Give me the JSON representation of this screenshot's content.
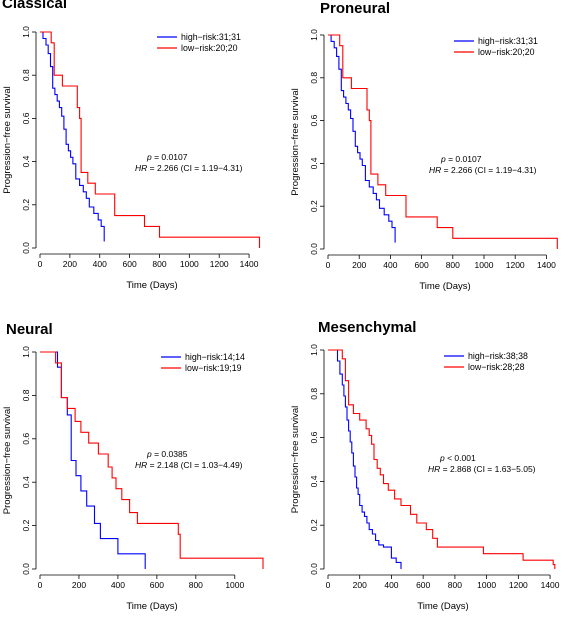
{
  "chart_data": [
    {
      "type": "line",
      "title": "Classical",
      "xlabel": "Time (Days)",
      "ylabel": "Progression−free survival",
      "xlim": [
        0,
        1500
      ],
      "ylim": [
        0,
        1
      ],
      "xticks": [
        0,
        200,
        400,
        600,
        800,
        1000,
        1200,
        1400
      ],
      "yticks": [
        0.0,
        0.2,
        0.4,
        0.6,
        0.8,
        1.0
      ],
      "grid": false,
      "legend_position": "top-right",
      "series": [
        {
          "name": "high−risk:31;31",
          "color": "#0000ff",
          "x": [
            0,
            20,
            40,
            55,
            70,
            85,
            100,
            115,
            130,
            145,
            160,
            175,
            190,
            205,
            220,
            240,
            265,
            290,
            310,
            330,
            360,
            390,
            410,
            430
          ],
          "y": [
            1.0,
            0.97,
            0.94,
            0.9,
            0.84,
            0.74,
            0.71,
            0.68,
            0.65,
            0.61,
            0.55,
            0.48,
            0.45,
            0.42,
            0.39,
            0.32,
            0.29,
            0.26,
            0.23,
            0.19,
            0.16,
            0.13,
            0.1,
            0.03
          ]
        },
        {
          "name": "low−risk:20;20",
          "color": "#ff0000",
          "x": [
            0,
            75,
            95,
            150,
            250,
            265,
            275,
            320,
            370,
            500,
            700,
            800,
            1460,
            1470
          ],
          "y": [
            1.0,
            0.95,
            0.8,
            0.75,
            0.65,
            0.6,
            0.35,
            0.3,
            0.25,
            0.15,
            0.1,
            0.05,
            0.05,
            0.0
          ]
        }
      ],
      "annotations": {
        "p_label": "p",
        "p_value": "= 0.0107",
        "hr_label": "HR",
        "hr_value": "= 2.266  (CI = 1.19−4.31)"
      }
    },
    {
      "type": "line",
      "title": "Proneural",
      "xlabel": "Time (Days)",
      "ylabel": "Progression−free survival",
      "xlim": [
        0,
        1500
      ],
      "ylim": [
        0,
        1
      ],
      "xticks": [
        0,
        200,
        400,
        600,
        800,
        1000,
        1200,
        1400
      ],
      "yticks": [
        0.0,
        0.2,
        0.4,
        0.6,
        0.8,
        1.0
      ],
      "grid": false,
      "legend_position": "top-right",
      "series": [
        {
          "name": "high−risk:31;31",
          "color": "#0000ff",
          "x": [
            0,
            20,
            40,
            55,
            70,
            85,
            100,
            115,
            130,
            145,
            160,
            175,
            190,
            205,
            220,
            240,
            265,
            290,
            310,
            330,
            360,
            390,
            410,
            430
          ],
          "y": [
            1.0,
            0.97,
            0.94,
            0.9,
            0.84,
            0.74,
            0.71,
            0.68,
            0.65,
            0.61,
            0.55,
            0.48,
            0.45,
            0.42,
            0.39,
            0.32,
            0.29,
            0.26,
            0.23,
            0.19,
            0.16,
            0.13,
            0.1,
            0.03
          ]
        },
        {
          "name": "low−risk:20;20",
          "color": "#ff0000",
          "x": [
            0,
            75,
            95,
            150,
            250,
            265,
            275,
            320,
            370,
            500,
            700,
            800,
            1460,
            1470
          ],
          "y": [
            1.0,
            0.95,
            0.8,
            0.75,
            0.65,
            0.6,
            0.35,
            0.3,
            0.25,
            0.15,
            0.1,
            0.05,
            0.05,
            0.0
          ]
        }
      ],
      "annotations": {
        "p_label": "p",
        "p_value": "= 0.0107",
        "hr_label": "HR",
        "hr_value": "= 2.266  (CI = 1.19−4.31)"
      }
    },
    {
      "type": "line",
      "title": "Neural",
      "xlabel": "Time (Days)",
      "ylabel": "Progression−free survival",
      "xlim": [
        0,
        1150
      ],
      "ylim": [
        0,
        1
      ],
      "xticks": [
        0,
        200,
        400,
        600,
        800,
        1000
      ],
      "yticks": [
        0.0,
        0.2,
        0.4,
        0.6,
        0.8,
        1.0
      ],
      "grid": false,
      "legend_position": "top-right",
      "series": [
        {
          "name": "high−risk:14;14",
          "color": "#0000ff",
          "x": [
            0,
            90,
            110,
            140,
            160,
            185,
            210,
            240,
            280,
            310,
            400,
            540
          ],
          "y": [
            1.0,
            0.93,
            0.79,
            0.71,
            0.5,
            0.43,
            0.36,
            0.29,
            0.21,
            0.14,
            0.07,
            0.0
          ]
        },
        {
          "name": "low−risk:19;19",
          "color": "#ff0000",
          "x": [
            0,
            80,
            110,
            140,
            180,
            210,
            250,
            300,
            350,
            370,
            390,
            420,
            460,
            500,
            710,
            720,
            1140,
            1145
          ],
          "y": [
            1.0,
            0.95,
            0.79,
            0.74,
            0.68,
            0.63,
            0.58,
            0.53,
            0.47,
            0.42,
            0.37,
            0.32,
            0.26,
            0.21,
            0.16,
            0.05,
            0.05,
            0.0
          ]
        }
      ],
      "annotations": {
        "p_label": "p",
        "p_value": "= 0.0385",
        "hr_label": "HR",
        "hr_value": "= 2.148  (CI = 1.03−4.49)"
      }
    },
    {
      "type": "line",
      "title": "Mesenchymal",
      "xlabel": "Time (Days)",
      "ylabel": "Progression−free survival",
      "xlim": [
        0,
        1450
      ],
      "ylim": [
        0,
        1
      ],
      "xticks": [
        0,
        200,
        400,
        600,
        800,
        1000,
        1200,
        1400
      ],
      "yticks": [
        0.0,
        0.2,
        0.4,
        0.6,
        0.8,
        1.0
      ],
      "grid": false,
      "legend_position": "top-right",
      "series": [
        {
          "name": "high−risk:38;38",
          "color": "#0000ff",
          "x": [
            0,
            60,
            75,
            90,
            100,
            110,
            120,
            130,
            140,
            150,
            160,
            170,
            180,
            190,
            200,
            215,
            230,
            245,
            260,
            280,
            300,
            320,
            350,
            400,
            430,
            460
          ],
          "y": [
            1.0,
            0.95,
            0.89,
            0.84,
            0.79,
            0.74,
            0.68,
            0.63,
            0.58,
            0.53,
            0.47,
            0.42,
            0.37,
            0.34,
            0.29,
            0.26,
            0.24,
            0.21,
            0.18,
            0.16,
            0.13,
            0.11,
            0.1,
            0.05,
            0.03,
            0.0
          ]
        },
        {
          "name": "low−risk:28;28",
          "color": "#ff0000",
          "x": [
            0,
            90,
            110,
            130,
            160,
            200,
            240,
            260,
            275,
            290,
            310,
            330,
            350,
            380,
            420,
            460,
            520,
            560,
            620,
            660,
            690,
            980,
            1230,
            1420,
            1430
          ],
          "y": [
            1.0,
            0.96,
            0.86,
            0.75,
            0.71,
            0.68,
            0.64,
            0.61,
            0.57,
            0.5,
            0.46,
            0.43,
            0.39,
            0.36,
            0.32,
            0.29,
            0.25,
            0.21,
            0.18,
            0.14,
            0.1,
            0.07,
            0.04,
            0.02,
            0.0
          ]
        }
      ],
      "annotations": {
        "p_label": "p",
        "p_value": "< 0.001",
        "hr_label": "HR",
        "hr_value": "= 2.868  (CI = 1.63−5.05)"
      }
    }
  ]
}
